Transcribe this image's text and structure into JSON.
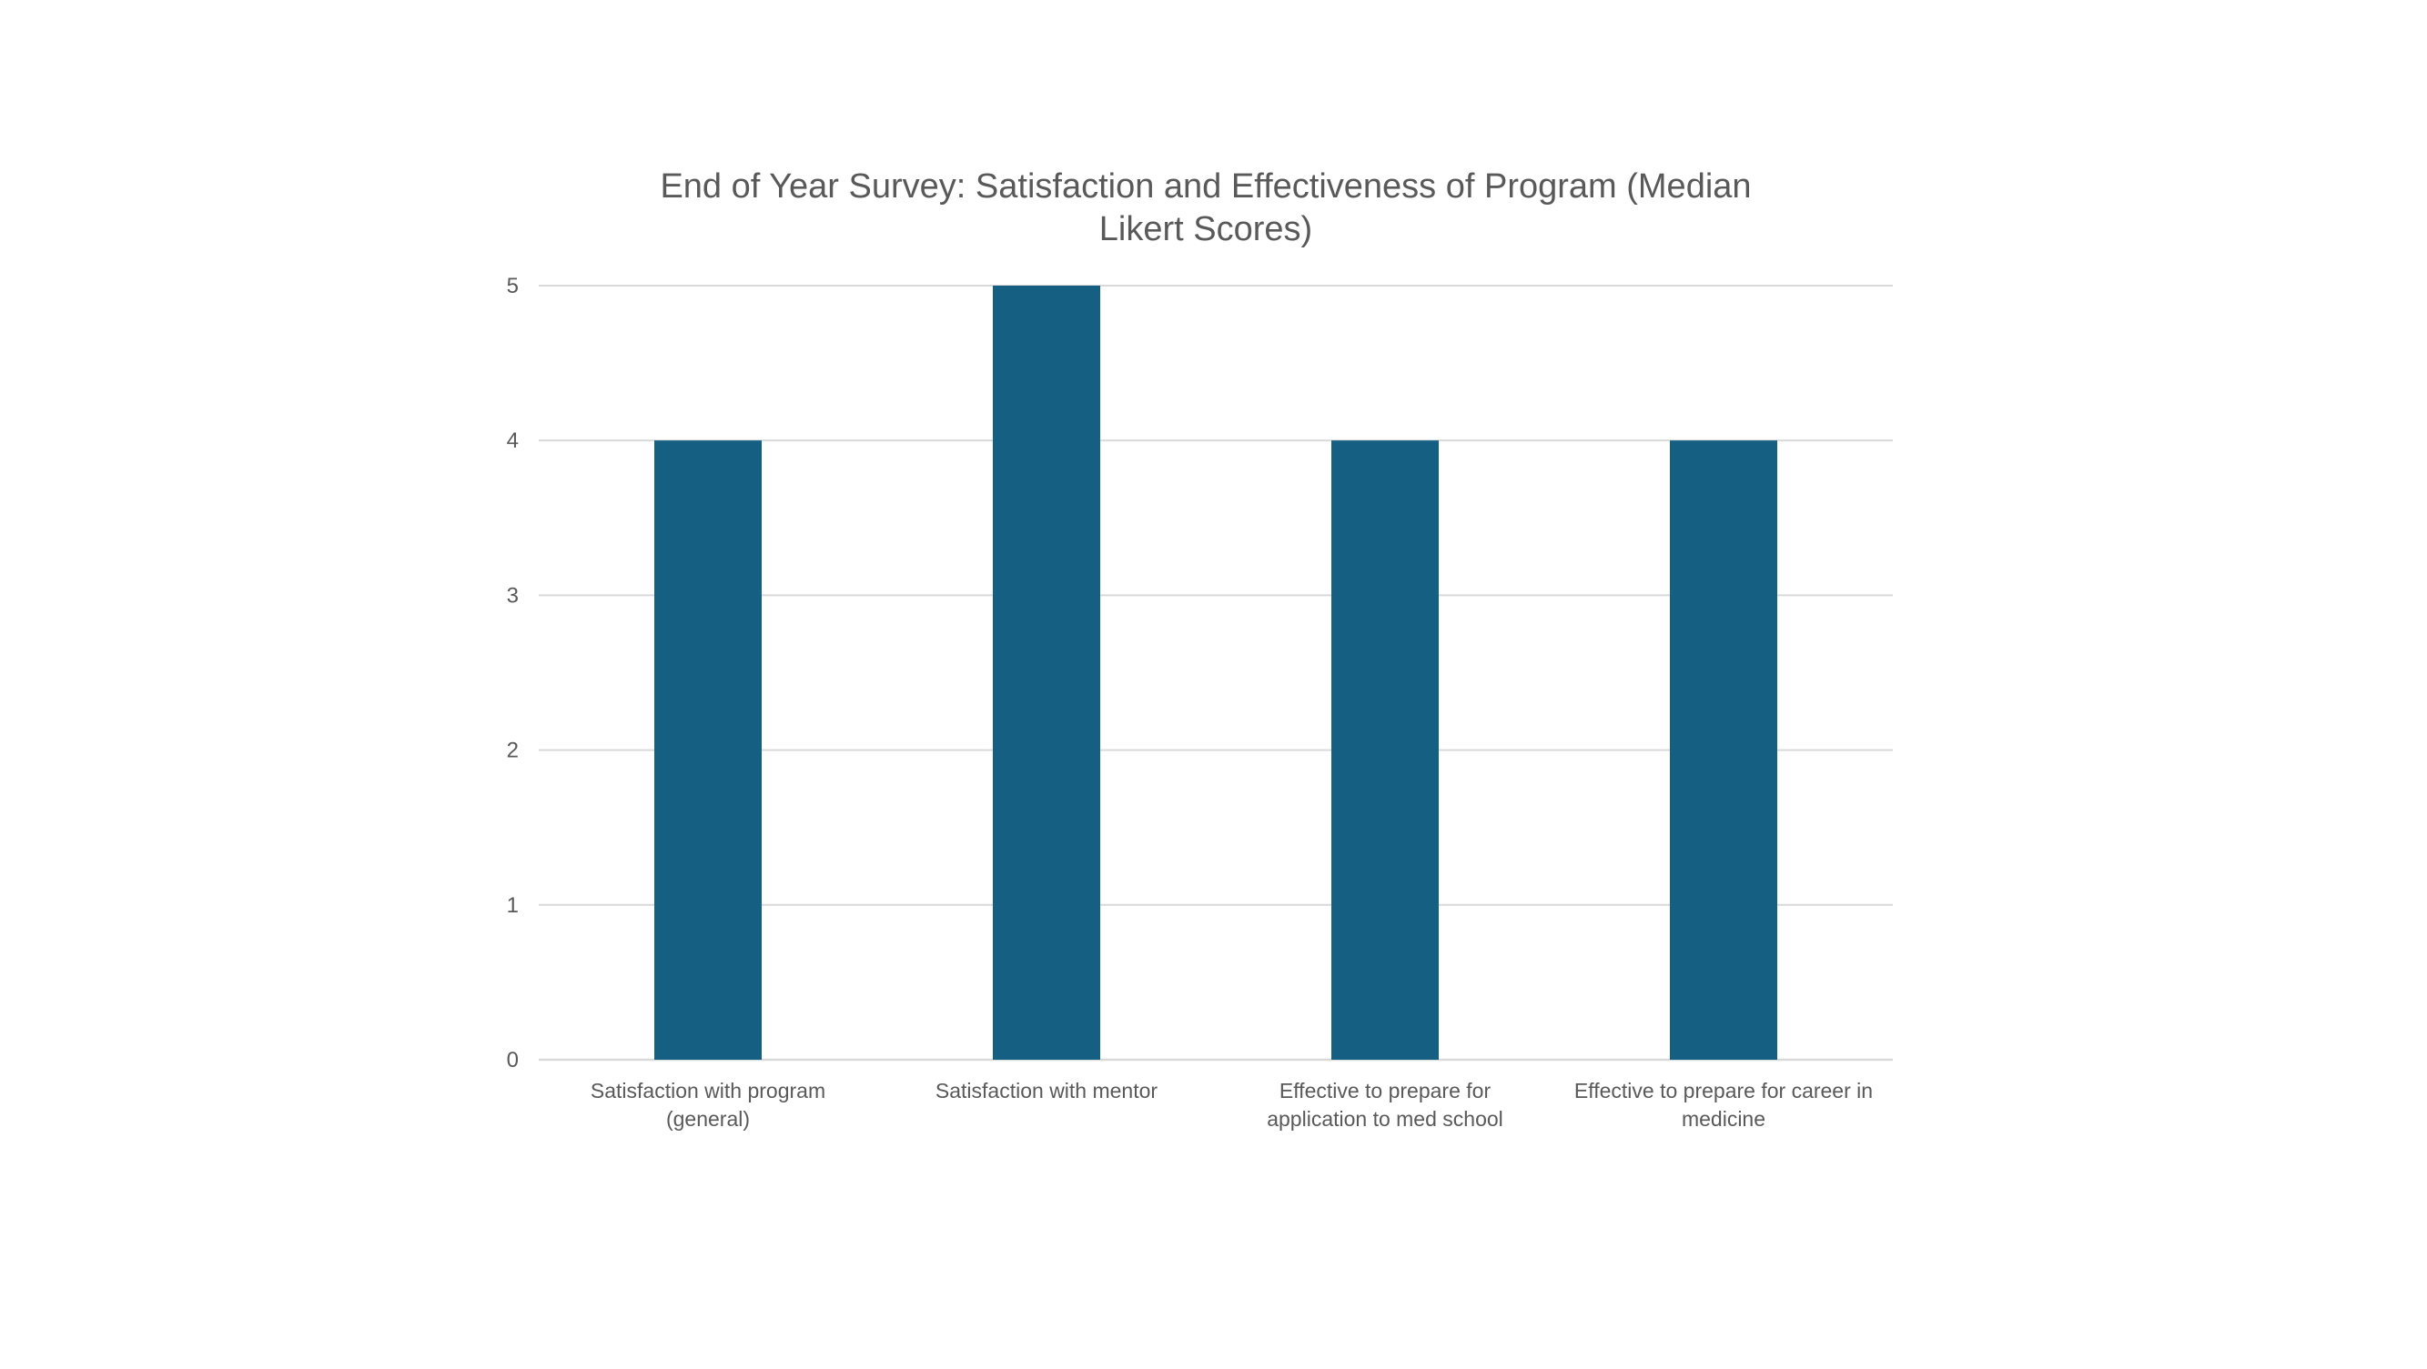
{
  "chart_data": {
    "type": "bar",
    "title": "End of Year Survey: Satisfaction and Effectiveness of Program (Median Likert Scores)",
    "xlabel": "",
    "ylabel": "",
    "categories": [
      "Satisfaction with program (general)",
      "Satisfaction with mentor",
      "Effective to prepare for application to med school",
      "Effective to prepare for career in medicine"
    ],
    "category_label_lines": [
      [
        "Satisfaction with program",
        "(general)"
      ],
      [
        "Satisfaction with mentor"
      ],
      [
        "Effective to prepare for",
        "application to med school"
      ],
      [
        "Effective to prepare for career in",
        "medicine"
      ]
    ],
    "values": [
      4,
      5,
      4,
      4
    ],
    "ylim": [
      0,
      5
    ],
    "yticks": [
      0,
      1,
      2,
      3,
      4,
      5
    ],
    "grid": true,
    "legend": "none",
    "colors": {
      "bar": "#156082",
      "grid": "#d9d9d9",
      "axis": "#d9d9d9",
      "text": "#595959"
    }
  }
}
